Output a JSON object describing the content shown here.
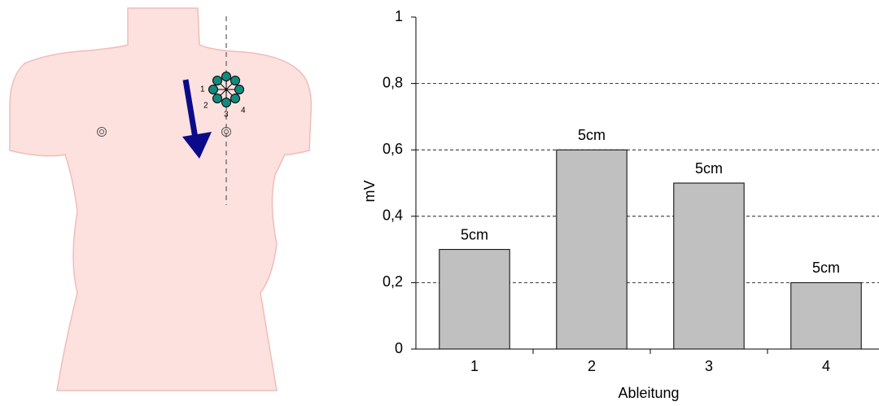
{
  "diagram": {
    "electrode_labels": [
      "1",
      "2",
      "3",
      "4"
    ]
  },
  "chart_data": {
    "type": "bar",
    "categories": [
      "1",
      "2",
      "3",
      "4"
    ],
    "values": [
      0.3,
      0.6,
      0.5,
      0.2
    ],
    "value_labels": [
      "5cm",
      "5cm",
      "5cm",
      "5cm"
    ],
    "color": "#c0c0c0",
    "x_label": "Ableitung",
    "y_label": "mV",
    "ylim": [
      0,
      1
    ],
    "yticks": [
      0,
      {
        "value": 0.2,
        "label": "0,2"
      },
      {
        "value": 0.4,
        "label": "0,4"
      },
      {
        "value": 0.6,
        "label": "0,6"
      },
      {
        "value": 0.8,
        "label": "0,8"
      },
      1
    ],
    "grid": true
  }
}
